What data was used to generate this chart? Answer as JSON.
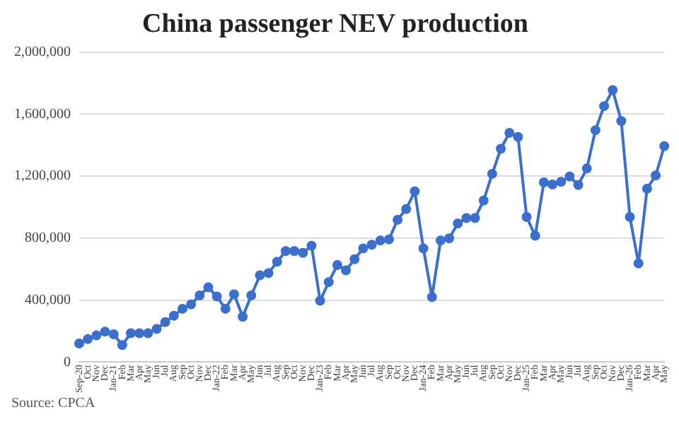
{
  "chart_data": {
    "type": "line",
    "title": "China passenger NEV production",
    "categories": [
      "Sep-20",
      "Oct",
      "Nov",
      "Dec",
      "Jan-21",
      "Feb",
      "Mar",
      "Apr",
      "May",
      "Jun",
      "Jul",
      "Aug",
      "Sep",
      "Oct",
      "Nov",
      "Dec",
      "Jan-22",
      "Feb",
      "Mar",
      "Apr",
      "May",
      "Jun",
      "Jul",
      "Aug",
      "Sep",
      "Oct",
      "Nov",
      "Dec",
      "Jan-23",
      "Feb",
      "Mar",
      "Apr",
      "May",
      "Jun",
      "Jul",
      "Aug",
      "Sep",
      "Oct",
      "Nov",
      "Dec",
      "Jan-24",
      "Feb",
      "Mar",
      "Apr",
      "May",
      "Jun",
      "Jul",
      "Aug",
      "Sep",
      "Oct",
      "Nov",
      "Dec",
      "Jan-25",
      "Feb",
      "Mar",
      "Apr",
      "May",
      "Jun",
      "Jul",
      "Aug",
      "Sep",
      "Oct",
      "Nov",
      "Dec",
      "Jan-26",
      "Feb",
      "Mar",
      "Apr",
      "May"
    ],
    "series": [
      {
        "color": "#3a6fcf",
        "values": [
          120000,
          148000,
          172000,
          196000,
          179000,
          110000,
          186000,
          186000,
          186000,
          213000,
          258000,
          299000,
          344000,
          372000,
          430000,
          482000,
          423000,
          344000,
          437000,
          292000,
          430000,
          560000,
          574000,
          647000,
          716000,
          716000,
          705000,
          750000,
          396000,
          516000,
          626000,
          592000,
          664000,
          733000,
          757000,
          784000,
          791000,
          918000,
          987000,
          1101000,
          733000,
          420000,
          784000,
          798000,
          894000,
          929000,
          929000,
          1042000,
          1214000,
          1376000,
          1479000,
          1452000,
          936000,
          815000,
          1159000,
          1146000,
          1163000,
          1197000,
          1142000,
          1249000,
          1496000,
          1651000,
          1754000,
          1555000,
          936000,
          636000,
          1118000,
          1204000,
          1393000
        ]
      }
    ],
    "ylim": [
      0,
      2000000
    ],
    "yticks": [
      {
        "value": 0,
        "label": "0"
      },
      {
        "value": 400000,
        "label": "400,000"
      },
      {
        "value": 800000,
        "label": "800,000"
      },
      {
        "value": 1200000,
        "label": "1,200,000"
      },
      {
        "value": 1600000,
        "label": "1,600,000"
      },
      {
        "value": 2000000,
        "label": "2,000,000"
      }
    ],
    "grid": "y",
    "marker": "circle",
    "line_style": "solid",
    "annotations": [
      "Source: CPCA"
    ]
  }
}
